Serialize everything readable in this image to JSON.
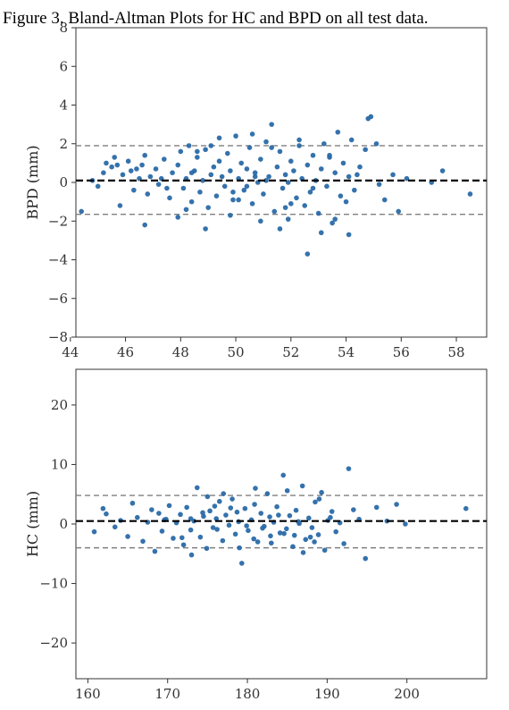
{
  "figure_title": "Figure 3.    Bland-Altman Plots for HC and BPD on all test data.",
  "chart_data": [
    {
      "type": "scatter",
      "name": "BPD",
      "title": "",
      "xlabel": "",
      "ylabel": "BPD (mm)",
      "xlim": [
        44.2,
        59.1
      ],
      "ylim": [
        -8,
        8
      ],
      "xticks": [
        44,
        46,
        48,
        50,
        52,
        54,
        56,
        58
      ],
      "yticks": [
        -8,
        -6,
        -4,
        -2,
        0,
        2,
        4,
        6,
        8
      ],
      "mean_line": 0.1,
      "upper_loa": 1.9,
      "lower_loa": -1.65,
      "point_color": "#2a6aa8",
      "mean_line_color": "#000000",
      "loa_line_color": "#7f7f7f",
      "grid": false,
      "points": {
        "x": [
          44.4,
          44.8,
          45.0,
          45.2,
          45.3,
          45.5,
          45.6,
          45.8,
          45.9,
          46.1,
          46.2,
          46.3,
          46.5,
          46.6,
          46.7,
          46.8,
          46.9,
          47.1,
          47.2,
          47.4,
          47.6,
          47.7,
          47.9,
          48.0,
          48.1,
          48.2,
          48.3,
          48.4,
          48.5,
          48.6,
          48.7,
          48.8,
          48.9,
          49.0,
          49.1,
          49.2,
          49.3,
          49.4,
          49.5,
          49.6,
          49.7,
          49.8,
          49.9,
          50.0,
          50.1,
          50.2,
          50.3,
          50.4,
          50.5,
          50.6,
          50.7,
          50.8,
          50.9,
          51.0,
          51.1,
          51.2,
          51.3,
          51.4,
          51.5,
          51.6,
          51.7,
          51.8,
          51.9,
          52.0,
          52.1,
          52.2,
          52.3,
          52.4,
          52.5,
          52.6,
          52.7,
          52.8,
          52.9,
          53.0,
          53.1,
          53.2,
          53.3,
          53.4,
          53.5,
          53.6,
          53.7,
          53.8,
          53.9,
          54.0,
          54.1,
          54.2,
          54.3,
          54.5,
          54.7,
          54.8,
          54.9,
          55.1,
          55.4,
          55.7,
          55.9,
          56.2,
          57.1,
          57.5,
          58.5,
          46.7,
          48.9,
          51.6,
          52.6,
          53.1,
          54.1,
          47.9,
          49.8,
          50.9,
          51.8,
          53.6,
          48.2,
          50.1,
          52.0,
          49.4,
          51.3,
          50.6,
          48.6,
          52.3,
          53.4,
          49.1,
          50.4,
          51.1,
          47.5,
          54.4,
          45.7,
          46.4,
          55.2,
          49.9,
          50.7,
          51.9,
          52.8,
          48.4,
          47.3
        ],
        "y": [
          -1.5,
          0.1,
          -0.2,
          0.5,
          1.0,
          0.8,
          1.3,
          -1.2,
          0.4,
          1.1,
          0.6,
          -0.4,
          0.2,
          0.9,
          1.4,
          -0.6,
          0.3,
          0.7,
          -0.1,
          1.2,
          -0.8,
          0.5,
          0.9,
          1.6,
          -0.3,
          0.2,
          1.9,
          -1.0,
          0.6,
          1.3,
          -0.5,
          0.1,
          1.7,
          -1.3,
          0.4,
          0.8,
          -0.7,
          1.1,
          0.3,
          -0.2,
          1.5,
          0.6,
          -0.9,
          2.4,
          0.2,
          1.0,
          -0.4,
          0.7,
          1.8,
          -1.1,
          0.5,
          0.0,
          1.2,
          -0.6,
          2.1,
          0.3,
          3.0,
          -1.5,
          0.8,
          1.6,
          -0.3,
          0.4,
          -1.9,
          1.1,
          0.6,
          -0.8,
          1.9,
          0.2,
          -1.2,
          0.9,
          -0.5,
          1.4,
          0.1,
          -1.6,
          0.7,
          2.0,
          -0.2,
          1.3,
          -2.1,
          0.5,
          2.6,
          -0.7,
          1.0,
          -1.0,
          0.3,
          2.2,
          -0.4,
          0.8,
          1.7,
          3.3,
          3.4,
          2.0,
          -0.9,
          0.4,
          -1.5,
          0.2,
          0.0,
          0.6,
          -0.6,
          -2.2,
          -2.4,
          -2.4,
          -3.7,
          -2.6,
          -2.7,
          -1.8,
          -1.7,
          -2.0,
          -1.3,
          -1.9,
          -1.4,
          -0.9,
          -1.1,
          2.3,
          1.8,
          2.5,
          1.6,
          2.2,
          1.4,
          1.9,
          -0.2,
          0.1,
          -0.3,
          0.4,
          0.9,
          0.7,
          -0.1,
          -0.5,
          0.3,
          0.0,
          -0.3,
          0.5,
          0.2
        ]
      }
    },
    {
      "type": "scatter",
      "name": "HC",
      "title": "",
      "xlabel": "",
      "ylabel": "HC (mm)",
      "xlim": [
        158.5,
        210
      ],
      "ylim": [
        -26,
        26
      ],
      "xticks": [
        160,
        170,
        180,
        190,
        200
      ],
      "yticks": [
        -20,
        -10,
        0,
        10,
        20
      ],
      "mean_line": 0.5,
      "upper_loa": 4.8,
      "lower_loa": -4.0,
      "point_color": "#2a6aa8",
      "mean_line_color": "#000000",
      "loa_line_color": "#7f7f7f",
      "grid": false,
      "points": {
        "x": [
          160.8,
          161.9,
          162.3,
          163.4,
          164.1,
          165.0,
          165.6,
          166.2,
          166.9,
          167.5,
          168.0,
          168.4,
          168.9,
          169.3,
          169.8,
          170.2,
          170.7,
          171.1,
          171.6,
          172.0,
          172.4,
          172.9,
          173.3,
          173.7,
          174.1,
          174.5,
          174.9,
          175.3,
          175.7,
          176.1,
          176.5,
          176.9,
          177.3,
          177.7,
          178.1,
          178.5,
          178.9,
          179.3,
          179.7,
          180.1,
          180.5,
          180.9,
          181.3,
          181.7,
          182.1,
          182.5,
          182.9,
          183.3,
          183.7,
          184.1,
          184.5,
          184.9,
          185.3,
          185.7,
          186.1,
          186.5,
          186.9,
          187.3,
          187.7,
          188.1,
          188.5,
          188.9,
          189.3,
          189.7,
          190.1,
          190.6,
          191.1,
          191.6,
          192.1,
          192.7,
          193.3,
          194.0,
          194.8,
          196.2,
          197.5,
          198.7,
          199.8,
          207.4,
          173.0,
          175.0,
          177.0,
          179.0,
          181.0,
          183.0,
          185.0,
          187.0,
          189.0,
          176.2,
          178.7,
          180.8,
          182.8,
          184.6,
          186.4,
          174.4,
          171.8,
          188.4,
          190.4,
          169.6,
          179.9,
          183.9,
          181.9,
          177.9,
          185.9,
          172.9,
          187.9,
          175.9
        ],
        "y": [
          -1.3,
          2.6,
          1.7,
          -0.5,
          0.6,
          -2.1,
          3.5,
          1.1,
          -2.9,
          0.3,
          2.4,
          -4.6,
          1.8,
          -1.2,
          0.8,
          3.1,
          -2.4,
          0.2,
          1.6,
          -3.5,
          2.8,
          -1.0,
          0.5,
          6.1,
          -2.2,
          1.3,
          -4.1,
          2.2,
          -0.6,
          0.9,
          3.8,
          -2.8,
          1.5,
          -0.2,
          4.2,
          -1.7,
          0.4,
          -6.6,
          2.6,
          -1.1,
          0.7,
          3.3,
          -3.0,
          1.8,
          -0.4,
          5.1,
          -2.0,
          0.3,
          2.9,
          -1.5,
          8.2,
          -0.8,
          1.4,
          -3.8,
          2.3,
          0.1,
          6.4,
          -2.6,
          1.0,
          -0.6,
          3.7,
          -1.8,
          5.3,
          -4.4,
          0.6,
          2.1,
          -1.3,
          0.2,
          -3.3,
          9.3,
          2.4,
          0.8,
          -5.8,
          2.8,
          0.5,
          3.3,
          0.0,
          2.6,
          -5.2,
          4.6,
          5.1,
          -4.0,
          6.0,
          -3.2,
          5.6,
          -4.8,
          4.2,
          -0.9,
          2.0,
          -2.5,
          1.2,
          -1.6,
          0.4,
          1.9,
          -2.3,
          -3.0,
          1.1,
          0.7,
          -0.3,
          1.5,
          -0.7,
          2.7,
          -1.9,
          0.9,
          -2.2,
          3.0
        ]
      }
    }
  ]
}
